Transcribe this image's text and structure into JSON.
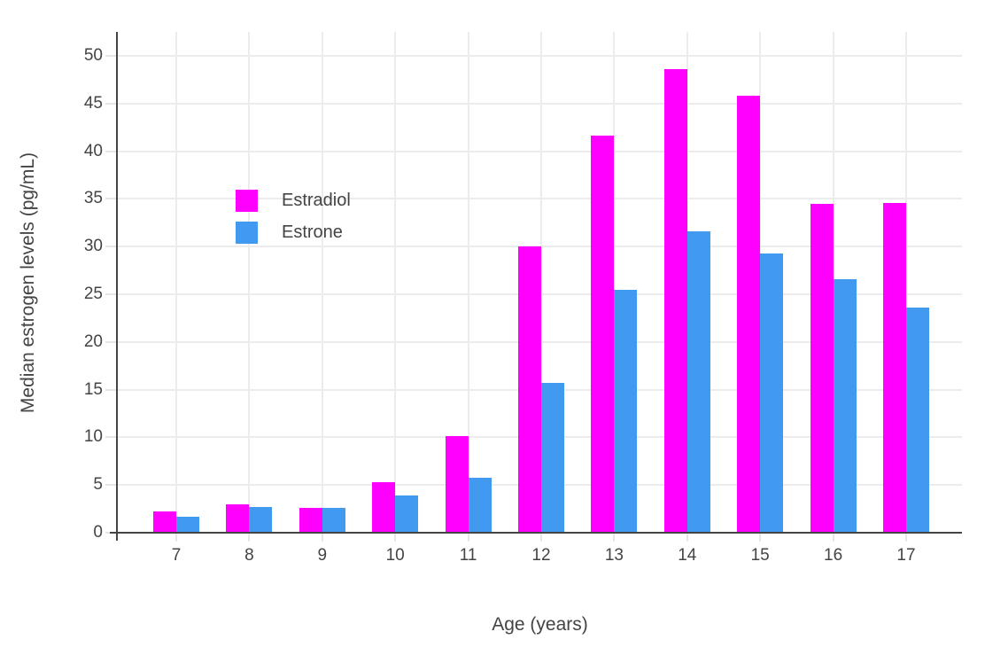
{
  "chart_data": {
    "type": "bar",
    "title": "",
    "xlabel": "Age (years)",
    "ylabel": "Median estrogen levels (pg/mL)",
    "categories": [
      7,
      8,
      9,
      10,
      11,
      12,
      13,
      14,
      15,
      16,
      17
    ],
    "series": [
      {
        "name": "Estradiol",
        "color": "#FF00FF",
        "values": [
          2.2,
          3.0,
          2.6,
          5.3,
          10.1,
          30.0,
          41.6,
          48.6,
          45.8,
          34.5,
          34.6
        ]
      },
      {
        "name": "Estrone",
        "color": "#4199F0",
        "values": [
          1.7,
          2.7,
          2.6,
          3.9,
          5.8,
          15.7,
          25.5,
          31.6,
          29.3,
          26.6,
          23.6
        ]
      }
    ],
    "yticks": [
      0,
      5,
      10,
      15,
      20,
      25,
      30,
      35,
      40,
      45,
      50
    ],
    "ylim": [
      0,
      52.5
    ],
    "grid": true,
    "legend_position": "inside-top-left",
    "barmode": "group"
  },
  "colors": {
    "background": "#FFFFFF",
    "axis_line": "#444444",
    "text": "#444444",
    "gridline": "#ECECEC",
    "estradiol": "#FF00FF",
    "estrone": "#4199F0"
  }
}
